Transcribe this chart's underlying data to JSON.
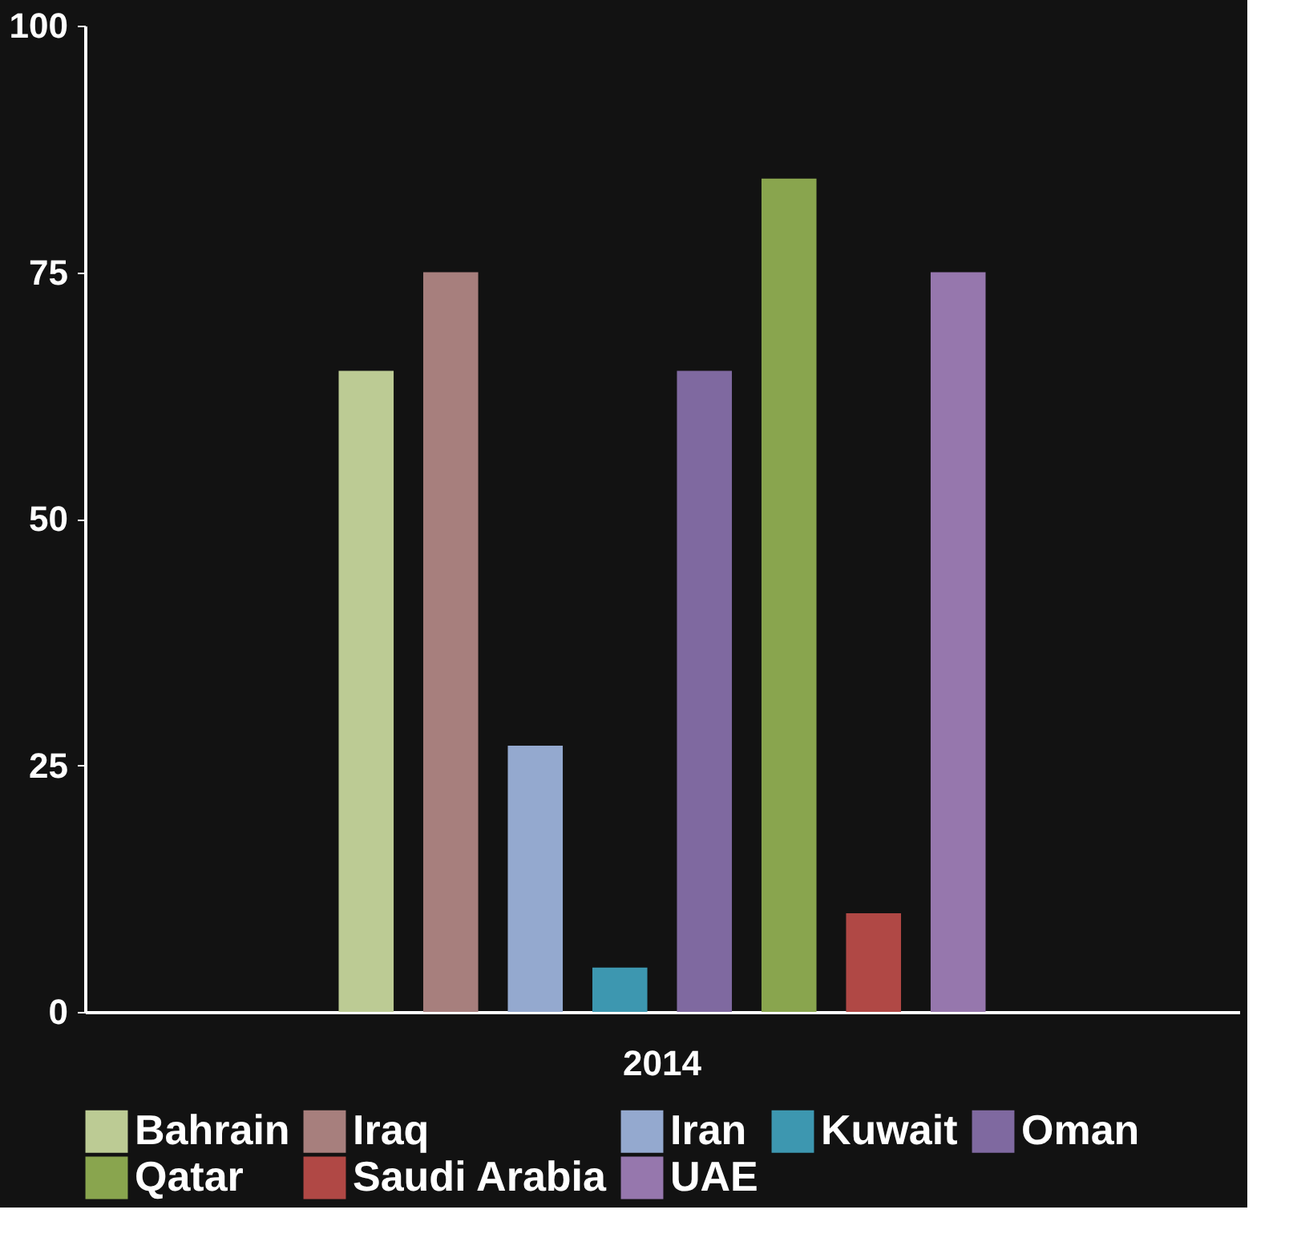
{
  "chart_data": {
    "type": "bar",
    "categories": [
      "2014"
    ],
    "series": [
      {
        "name": "Bahrain",
        "color": "#bccb94",
        "values": [
          65
        ]
      },
      {
        "name": "Iraq",
        "color": "#a77f7d",
        "values": [
          75
        ]
      },
      {
        "name": "Iran",
        "color": "#94a9cf",
        "values": [
          27
        ]
      },
      {
        "name": "Kuwait",
        "color": "#3d97b0",
        "values": [
          4.5
        ]
      },
      {
        "name": "Oman",
        "color": "#7f69a0",
        "values": [
          65
        ]
      },
      {
        "name": "Qatar",
        "color": "#89a54e",
        "values": [
          84.5
        ]
      },
      {
        "name": "Saudi Arabia",
        "color": "#b04845",
        "values": [
          10
        ]
      },
      {
        "name": "UAE",
        "color": "#9677ad",
        "values": [
          75
        ]
      }
    ],
    "ylim": [
      0,
      100
    ],
    "yticks": [
      0,
      25,
      50,
      75,
      100
    ],
    "grid": false,
    "legend": "bottom"
  }
}
